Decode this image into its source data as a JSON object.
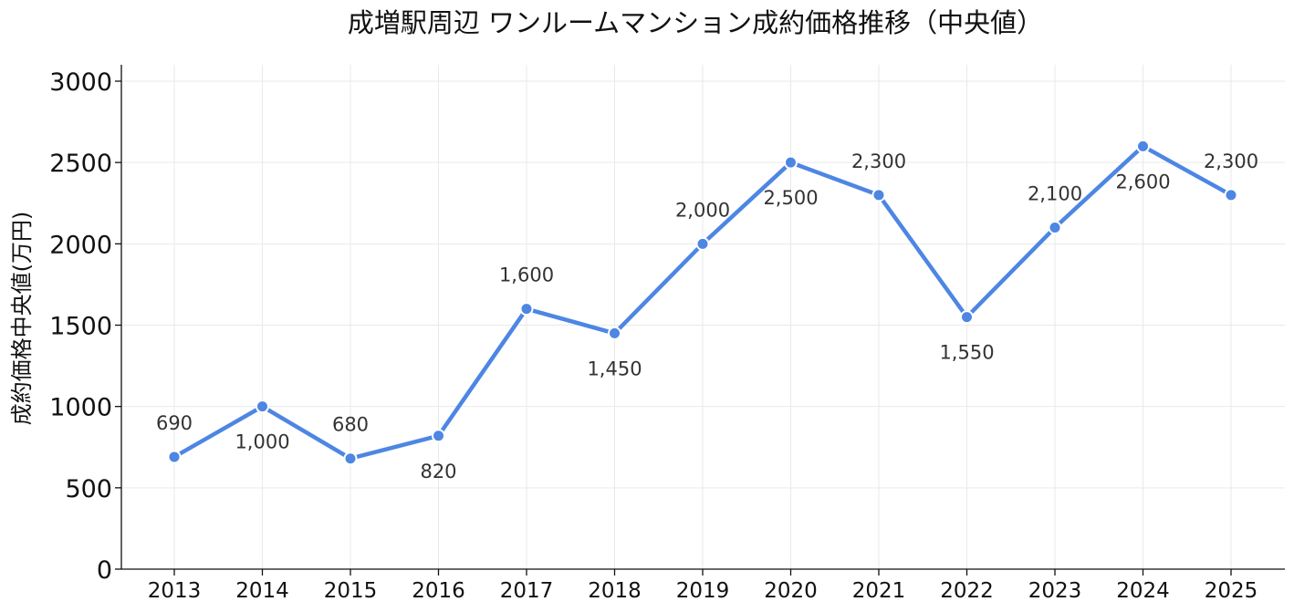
{
  "chart_data": {
    "type": "line",
    "title": "成増駅周辺 ワンルームマンション成約価格推移（中央値）",
    "xlabel": "",
    "ylabel": "成約価格中央値(万円)",
    "x": [
      "2013",
      "2014",
      "2015",
      "2016",
      "2017",
      "2018",
      "2019",
      "2020",
      "2021",
      "2022",
      "2023",
      "2024",
      "2025"
    ],
    "series": [
      {
        "values": [
          690,
          1000,
          680,
          820,
          1600,
          1450,
          2000,
          2500,
          2300,
          1550,
          2100,
          2600,
          2300
        ],
        "data_labels": [
          "690",
          "1,000",
          "680",
          "820",
          "1,600",
          "1,450",
          "2,000",
          "2,500",
          "2,300",
          "1,550",
          "2,100",
          "2,600",
          "2,300"
        ],
        "label_position": [
          "above",
          "below",
          "above",
          "below",
          "above",
          "below",
          "above",
          "below",
          "above",
          "below",
          "above",
          "below",
          "above"
        ],
        "color": "#4d86e3"
      }
    ],
    "ylim": [
      0,
      3000
    ],
    "yticks": [
      0,
      500,
      1000,
      1500,
      2000,
      2500,
      3000
    ],
    "grid": true,
    "legend": "none"
  }
}
